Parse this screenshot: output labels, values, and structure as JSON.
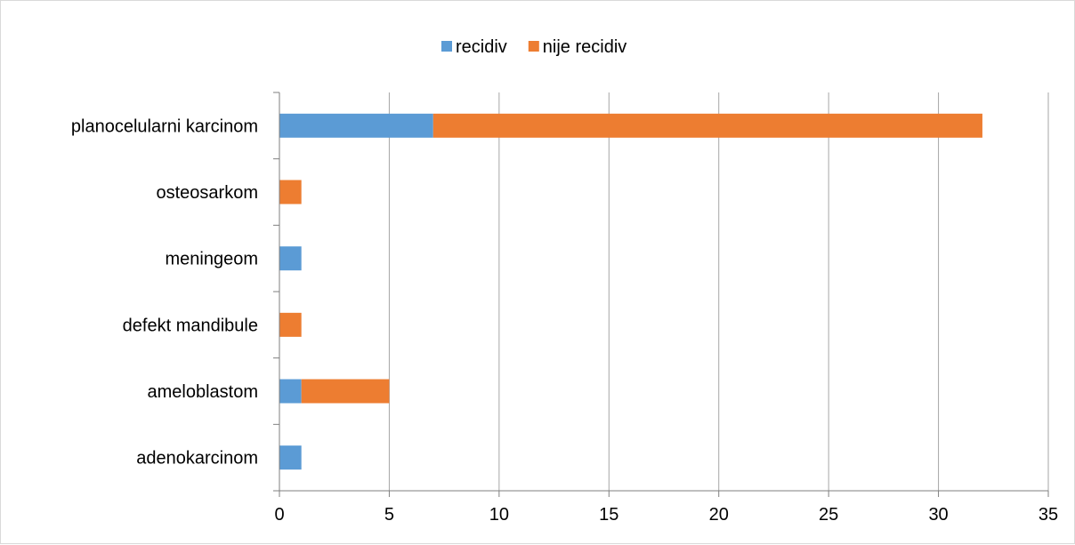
{
  "chart_data": {
    "type": "bar",
    "orientation": "horizontal",
    "stacked": true,
    "categories": [
      "adenokarcinom",
      "ameloblastom",
      "defekt mandibule",
      "meningeom",
      "osteosarkom",
      "planocelularni karcinom"
    ],
    "series": [
      {
        "name": "recidiv",
        "color": "#5b9bd5",
        "values": [
          1,
          1,
          0,
          1,
          0,
          7
        ]
      },
      {
        "name": "nije recidiv",
        "color": "#ed7d31",
        "values": [
          0,
          4,
          1,
          0,
          1,
          25
        ]
      }
    ],
    "xlim": [
      0,
      35
    ],
    "xticks": [
      0,
      5,
      10,
      15,
      20,
      25,
      30,
      35
    ],
    "grid": true,
    "legend": "top-center",
    "title": "",
    "xlabel": "",
    "ylabel": ""
  }
}
